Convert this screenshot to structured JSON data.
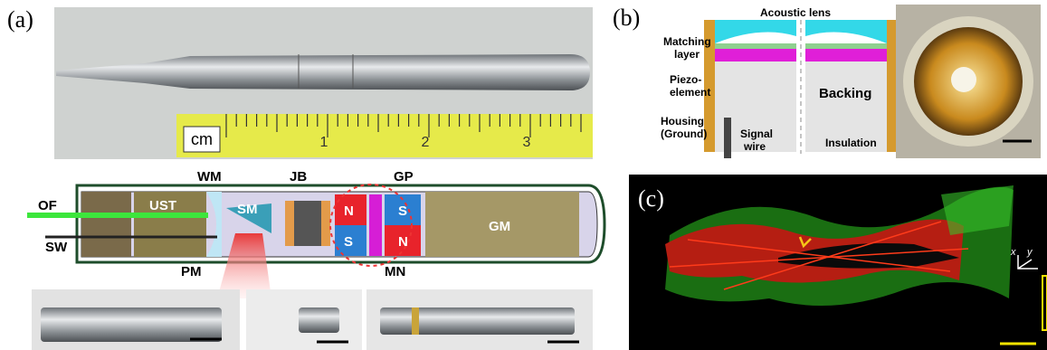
{
  "panels": {
    "a": {
      "label": "(a)",
      "ruler": {
        "unit": "cm",
        "numbers": [
          "1",
          "2",
          "3"
        ]
      },
      "diagram": {
        "OF": "OF",
        "SW": "SW",
        "WM": "WM",
        "UST": "UST",
        "SM": "SM",
        "JB": "JB",
        "GP": "GP",
        "N1": "N",
        "S1": "S",
        "S2": "S",
        "N2": "N",
        "MN": "MN",
        "PM": "PM",
        "GM": "GM"
      }
    },
    "b": {
      "label": "(b)",
      "labels": {
        "lens": "Acoustic lens",
        "matching": [
          "Matching",
          "layer"
        ],
        "piezo": [
          "Piezo-",
          "element"
        ],
        "housing": [
          "Housing",
          "(Ground)"
        ],
        "signal": [
          "Signal",
          "wire"
        ],
        "backing": "Backing",
        "insulation": "Insulation"
      }
    },
    "c": {
      "label": "(c)",
      "axes": [
        "x",
        "y"
      ]
    }
  }
}
